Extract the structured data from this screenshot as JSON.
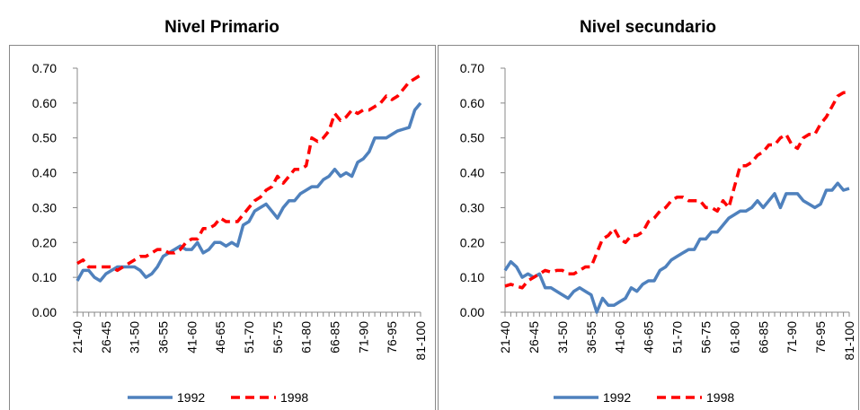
{
  "chart_data": [
    {
      "type": "line",
      "title": "Nivel Primario",
      "categories": [
        "21-40",
        null,
        null,
        null,
        null,
        "26-45",
        null,
        null,
        null,
        null,
        "31-50",
        null,
        null,
        null,
        null,
        "36-55",
        null,
        null,
        null,
        null,
        "41-60",
        null,
        null,
        null,
        null,
        "46-65",
        null,
        null,
        null,
        null,
        "51-70",
        null,
        null,
        null,
        null,
        "56-75",
        null,
        null,
        null,
        null,
        "61-80",
        null,
        null,
        null,
        null,
        "66-85",
        null,
        null,
        null,
        null,
        "71-90",
        null,
        null,
        null,
        null,
        "76-95",
        null,
        null,
        null,
        null,
        "81-100"
      ],
      "ylim": [
        0,
        0.7
      ],
      "yticks": [
        {
          "value": 0,
          "label": "0.00"
        },
        {
          "value": 0.1,
          "label": "0.10"
        },
        {
          "value": 0.2,
          "label": "0.20"
        },
        {
          "value": 0.3,
          "label": "0.30"
        },
        {
          "value": 0.4,
          "label": "0.40"
        },
        {
          "value": 0.5,
          "label": "0.50"
        },
        {
          "value": 0.6,
          "label": "0.60"
        },
        {
          "value": 0.7,
          "label": "0.70"
        }
      ],
      "series": [
        {
          "name": "1992",
          "color": "#4f81bd",
          "dashed": false,
          "values": [
            0.09,
            0.12,
            0.12,
            0.1,
            0.09,
            0.11,
            0.12,
            0.13,
            0.13,
            0.13,
            0.13,
            0.12,
            0.1,
            0.11,
            0.13,
            0.16,
            0.17,
            0.18,
            0.19,
            0.18,
            0.18,
            0.2,
            0.17,
            0.18,
            0.2,
            0.2,
            0.19,
            0.2,
            0.19,
            0.25,
            0.26,
            0.29,
            0.3,
            0.31,
            0.29,
            0.27,
            0.3,
            0.32,
            0.32,
            0.34,
            0.35,
            0.36,
            0.36,
            0.38,
            0.39,
            0.41,
            0.39,
            0.4,
            0.39,
            0.43,
            0.44,
            0.46,
            0.5,
            0.5,
            0.5,
            0.51,
            0.52,
            0.525,
            0.53,
            0.58,
            0.6
          ]
        },
        {
          "name": "1998",
          "color": "#ff0000",
          "dashed": true,
          "values": [
            0.14,
            0.15,
            0.13,
            0.13,
            0.13,
            0.13,
            0.13,
            0.12,
            0.13,
            0.14,
            0.15,
            0.16,
            0.16,
            0.17,
            0.18,
            0.18,
            0.17,
            0.17,
            0.18,
            0.2,
            0.21,
            0.21,
            0.24,
            0.24,
            0.25,
            0.27,
            0.26,
            0.26,
            0.26,
            0.28,
            0.3,
            0.32,
            0.33,
            0.35,
            0.36,
            0.39,
            0.37,
            0.39,
            0.41,
            0.41,
            0.42,
            0.5,
            0.49,
            0.5,
            0.52,
            0.57,
            0.55,
            0.56,
            0.58,
            0.57,
            0.58,
            0.58,
            0.59,
            0.6,
            0.62,
            0.61,
            0.62,
            0.64,
            0.66,
            0.67,
            0.68
          ]
        }
      ]
    },
    {
      "type": "line",
      "title": "Nivel secundario",
      "categories": [
        "21-40",
        null,
        null,
        null,
        null,
        "26-45",
        null,
        null,
        null,
        null,
        "31-50",
        null,
        null,
        null,
        null,
        "36-55",
        null,
        null,
        null,
        null,
        "41-60",
        null,
        null,
        null,
        null,
        "46-65",
        null,
        null,
        null,
        null,
        "51-70",
        null,
        null,
        null,
        null,
        "56-75",
        null,
        null,
        null,
        null,
        "61-80",
        null,
        null,
        null,
        null,
        "66-85",
        null,
        null,
        null,
        null,
        "71-90",
        null,
        null,
        null,
        null,
        "76-95",
        null,
        null,
        null,
        null,
        "81-100"
      ],
      "ylim": [
        0,
        0.7
      ],
      "yticks": [
        {
          "value": 0,
          "label": "0.00"
        },
        {
          "value": 0.1,
          "label": "0.10"
        },
        {
          "value": 0.2,
          "label": "0.20"
        },
        {
          "value": 0.3,
          "label": "0.30"
        },
        {
          "value": 0.4,
          "label": "0.40"
        },
        {
          "value": 0.5,
          "label": "0.50"
        },
        {
          "value": 0.6,
          "label": "0.60"
        },
        {
          "value": 0.7,
          "label": "0.70"
        }
      ],
      "series": [
        {
          "name": "1992",
          "color": "#4f81bd",
          "dashed": false,
          "values": [
            0.12,
            0.145,
            0.13,
            0.1,
            0.11,
            0.1,
            0.11,
            0.07,
            0.07,
            0.06,
            0.05,
            0.04,
            0.06,
            0.07,
            0.06,
            0.05,
            0.0,
            0.04,
            0.02,
            0.02,
            0.03,
            0.04,
            0.07,
            0.06,
            0.08,
            0.09,
            0.09,
            0.12,
            0.13,
            0.15,
            0.16,
            0.17,
            0.18,
            0.18,
            0.21,
            0.21,
            0.23,
            0.23,
            0.25,
            0.27,
            0.28,
            0.29,
            0.29,
            0.3,
            0.32,
            0.3,
            0.32,
            0.34,
            0.3,
            0.34,
            0.34,
            0.34,
            0.32,
            0.31,
            0.3,
            0.31,
            0.35,
            0.35,
            0.37,
            0.35,
            0.355
          ]
        },
        {
          "name": "1998",
          "color": "#ff0000",
          "dashed": true,
          "values": [
            0.075,
            0.08,
            0.075,
            0.07,
            0.09,
            0.1,
            0.11,
            0.12,
            0.115,
            0.12,
            0.12,
            0.11,
            0.11,
            0.12,
            0.13,
            0.13,
            0.17,
            0.21,
            0.22,
            0.24,
            0.21,
            0.2,
            0.22,
            0.22,
            0.23,
            0.26,
            0.27,
            0.29,
            0.3,
            0.32,
            0.33,
            0.33,
            0.32,
            0.32,
            0.32,
            0.3,
            0.3,
            0.29,
            0.32,
            0.3,
            0.36,
            0.42,
            0.42,
            0.43,
            0.45,
            0.46,
            0.48,
            0.48,
            0.5,
            0.51,
            0.48,
            0.47,
            0.5,
            0.51,
            0.51,
            0.54,
            0.56,
            0.59,
            0.62,
            0.63,
            0.63
          ]
        }
      ]
    }
  ]
}
